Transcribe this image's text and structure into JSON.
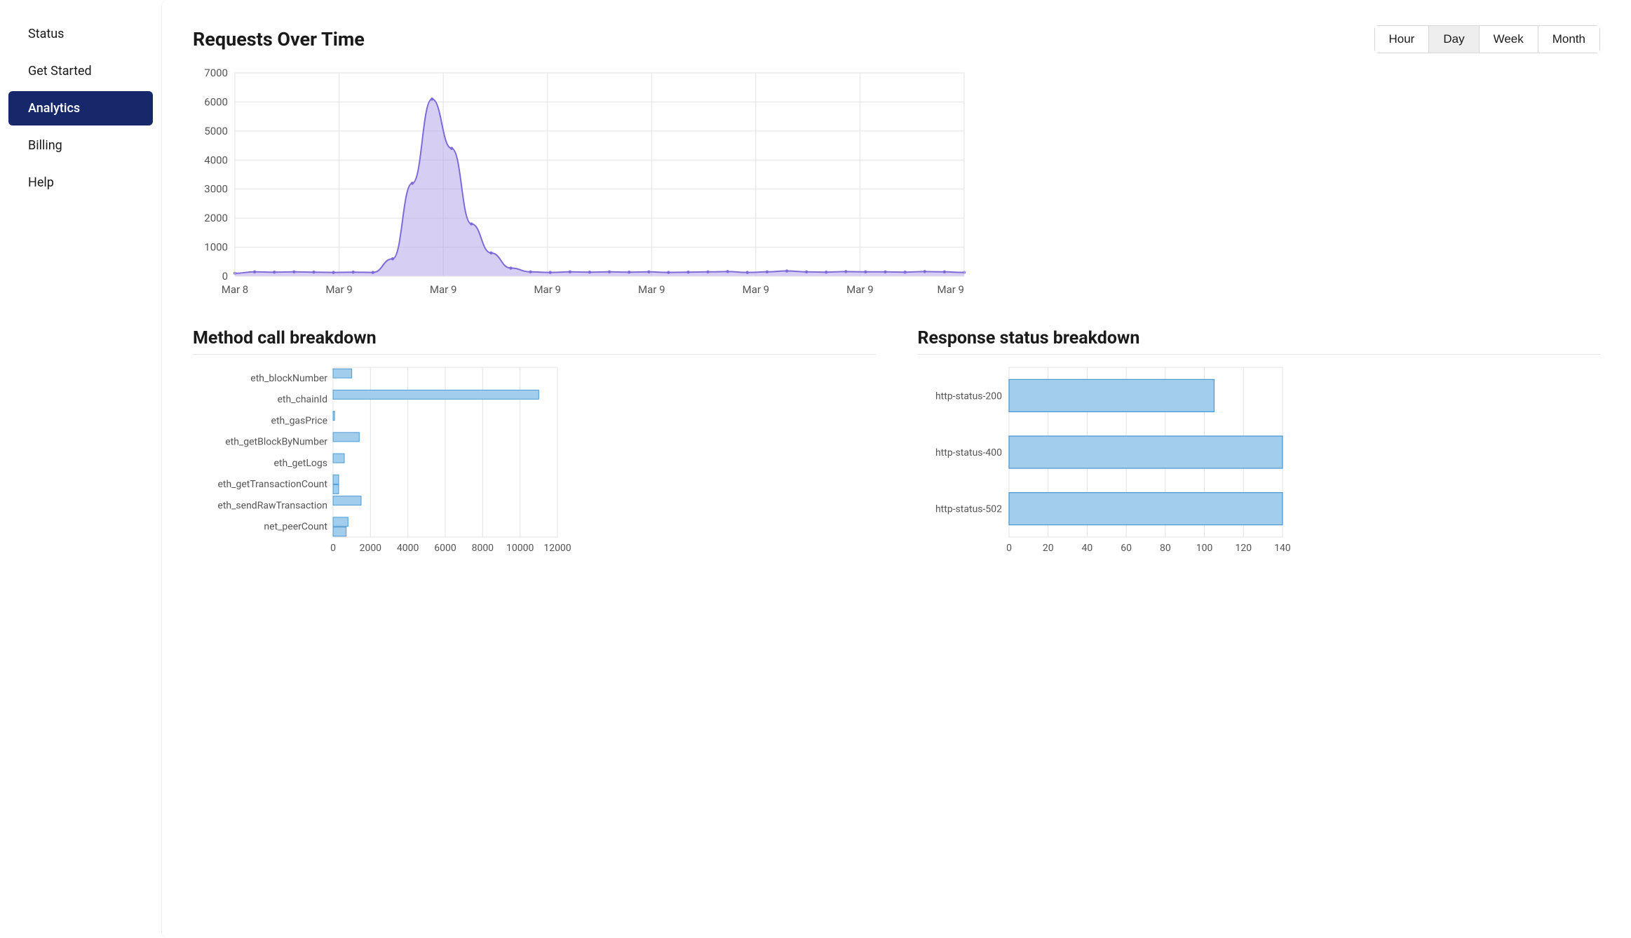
{
  "sidebar": {
    "items": [
      {
        "label": "Status",
        "name": "sidebar-item-status"
      },
      {
        "label": "Get Started",
        "name": "sidebar-item-get-started"
      },
      {
        "label": "Analytics",
        "name": "sidebar-item-analytics"
      },
      {
        "label": "Billing",
        "name": "sidebar-item-billing"
      },
      {
        "label": "Help",
        "name": "sidebar-item-help"
      }
    ],
    "active_index": 2
  },
  "requests_chart": {
    "title": "Requests Over Time",
    "type": "area",
    "range_options": [
      "Hour",
      "Day",
      "Week",
      "Month"
    ],
    "range_active_index": 1,
    "y_ticks": [
      0,
      1000,
      2000,
      3000,
      4000,
      5000,
      6000,
      7000
    ],
    "ylim": [
      0,
      7000
    ],
    "x_labels": [
      "Mar 8",
      "Mar 9",
      "Mar 9",
      "Mar 9",
      "Mar 9",
      "Mar 9",
      "Mar 9",
      "Mar 9"
    ],
    "values": [
      100,
      150,
      140,
      150,
      140,
      130,
      140,
      130,
      600,
      3200,
      6100,
      4400,
      1800,
      800,
      280,
      150,
      130,
      150,
      140,
      150,
      140,
      150,
      130,
      140,
      150,
      160,
      130,
      150,
      180,
      150,
      140,
      160,
      150,
      150,
      140,
      160,
      150,
      130
    ],
    "line_color": "#7e6bd9",
    "fill_color": "#b7a5ea",
    "fill_opacity": 0.55,
    "marker_color": "#7e6bd9",
    "marker_radius": 2.2,
    "grid_color": "#e3e3e3",
    "axis_text_color": "#555555",
    "axis_fontsize": 15,
    "plot_bg": "#ffffff"
  },
  "method_chart": {
    "title": "Method call breakdown",
    "type": "bar-horizontal",
    "categories": [
      "eth_blockNumber",
      "eth_chainId",
      "eth_gasPrice",
      "eth_getBlockByNumber",
      "eth_getLogs",
      "eth_getTransactionCount",
      "eth_sendRawTransaction",
      "net_peerCount"
    ],
    "series": [
      [
        1000,
        11000,
        80,
        1400,
        600,
        300,
        1500,
        800
      ],
      [
        0,
        0,
        0,
        0,
        0,
        300,
        0,
        700
      ]
    ],
    "xlim": [
      0,
      12000
    ],
    "x_ticks": [
      0,
      2000,
      4000,
      6000,
      8000,
      10000,
      12000
    ],
    "bar_fill": "#a2cdeb",
    "bar_stroke": "#4f9bd3",
    "grid_color": "#e3e3e3",
    "axis_text_color": "#555555",
    "axis_fontsize": 14
  },
  "status_chart": {
    "title": "Response status breakdown",
    "type": "bar-horizontal",
    "categories": [
      "http-status-200",
      "http-status-400",
      "http-status-502"
    ],
    "values": [
      105,
      140,
      140
    ],
    "xlim": [
      0,
      140
    ],
    "x_ticks": [
      0,
      20,
      40,
      60,
      80,
      100,
      120,
      140
    ],
    "bar_fill": "#a2cdeb",
    "bar_stroke": "#4f9bd3",
    "grid_color": "#e3e3e3",
    "axis_text_color": "#555555",
    "axis_fontsize": 14
  }
}
